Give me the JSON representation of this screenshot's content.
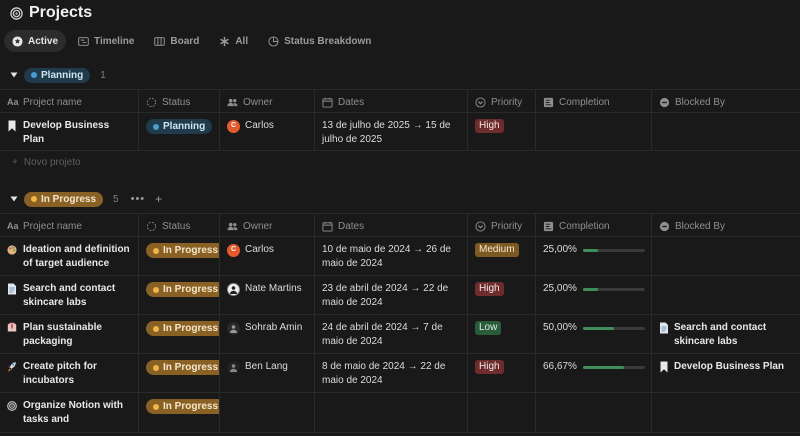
{
  "page": {
    "title": "Projects",
    "icon": "target-icon"
  },
  "views": [
    {
      "label": "Active",
      "icon": "star-circle-icon",
      "active": true
    },
    {
      "label": "Timeline",
      "icon": "timeline-icon",
      "active": false
    },
    {
      "label": "Board",
      "icon": "board-icon",
      "active": false
    },
    {
      "label": "All",
      "icon": "asterisk-icon",
      "active": false
    },
    {
      "label": "Status Breakdown",
      "icon": "pie-icon",
      "active": false
    }
  ],
  "columns": [
    "Project name",
    "Status",
    "Owner",
    "Dates",
    "Priority",
    "Completion",
    "Blocked By"
  ],
  "groups": [
    {
      "label": "Planning",
      "count": "1",
      "new_label": "Novo projeto",
      "rows": [
        {
          "name": "Develop Business Plan",
          "status": "Planning",
          "owner": "Carlos",
          "owner_initial": "C",
          "dates": "13 de julho de 2025 → 15 de julho de 2025",
          "priority": "High",
          "completion": "",
          "blocked_by": ""
        }
      ]
    },
    {
      "label": "In Progress",
      "count": "5",
      "more": "•••",
      "add": "+",
      "rows": [
        {
          "name": "Ideation and definition of target audience",
          "status": "In Progress",
          "owner": "Carlos",
          "owner_initial": "C",
          "dates": "10 de maio de 2024 → 26 de maio de 2024",
          "priority": "Medium",
          "completion": "25,00%",
          "completion_value": 0.25,
          "blocked_by": ""
        },
        {
          "name": "Search and contact skincare labs",
          "status": "In Progress",
          "owner": "Nate Martins",
          "owner_initial": "",
          "dates": "23 de abril de 2024 → 22 de maio de 2024",
          "priority": "High",
          "completion": "25,00%",
          "completion_value": 0.25,
          "blocked_by": ""
        },
        {
          "name": "Plan sustainable packaging",
          "status": "In Progress",
          "owner": "Sohrab Amin",
          "owner_initial": "",
          "dates": "24 de abril de 2024 → 7 de maio de 2024",
          "priority": "Low",
          "completion": "50,00%",
          "completion_value": 0.5,
          "blocked_by": "Search and contact skincare labs"
        },
        {
          "name": "Create pitch for incubators",
          "status": "In Progress",
          "owner": "Ben Lang",
          "owner_initial": "",
          "dates": "8 de maio de 2024 → 22 de maio de 2024",
          "priority": "High",
          "completion": "66,67%",
          "completion_value": 0.6667,
          "blocked_by": "Develop Business Plan"
        },
        {
          "name": "Organize Notion with tasks and",
          "status": "In Progress",
          "owner": "",
          "owner_initial": "",
          "dates": "",
          "priority": "",
          "completion": "",
          "blocked_by": ""
        }
      ]
    }
  ],
  "colors": {
    "background": "#191919",
    "planning": "#1f3b4c",
    "in_progress": "#8a6125",
    "high": "#6e2c2c",
    "medium": "#7d5a24",
    "low": "#2a5b3a",
    "progress_fill": "#3f8f5b"
  }
}
